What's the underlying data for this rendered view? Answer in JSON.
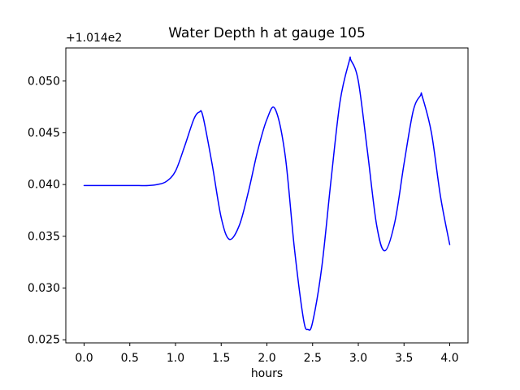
{
  "chart_data": {
    "type": "line",
    "title": "Water Depth h at gauge 105",
    "xlabel": "hours",
    "ylabel": "",
    "y_offset_text": "+1.014e2",
    "grid": false,
    "legend_position": "none",
    "line_color": "#0000ff",
    "background_color": "#ffffff",
    "xlim": [
      -0.2,
      4.2
    ],
    "ylim": [
      0.0247,
      0.0532
    ],
    "x_ticks": {
      "values": [
        0.0,
        0.5,
        1.0,
        1.5,
        2.0,
        2.5,
        3.0,
        3.5,
        4.0
      ],
      "labels": [
        "0.0",
        "0.5",
        "1.0",
        "1.5",
        "2.0",
        "2.5",
        "3.0",
        "3.5",
        "4.0"
      ]
    },
    "y_ticks": {
      "values": [
        0.025,
        0.03,
        0.035,
        0.04,
        0.045,
        0.05
      ],
      "labels": [
        "0.025",
        "0.030",
        "0.035",
        "0.040",
        "0.045",
        "0.050"
      ]
    },
    "series": [
      {
        "name": "water-depth-h",
        "points": [
          [
            0.0,
            0.0399
          ],
          [
            0.1,
            0.0399
          ],
          [
            0.2,
            0.0399
          ],
          [
            0.3,
            0.0399
          ],
          [
            0.4,
            0.0399
          ],
          [
            0.5,
            0.0399
          ],
          [
            0.6,
            0.0399
          ],
          [
            0.7,
            0.0399
          ],
          [
            0.8,
            0.04
          ],
          [
            0.9,
            0.0403
          ],
          [
            1.0,
            0.0413
          ],
          [
            1.1,
            0.0437
          ],
          [
            1.2,
            0.0463
          ],
          [
            1.26,
            0.047
          ],
          [
            1.3,
            0.0466
          ],
          [
            1.4,
            0.042
          ],
          [
            1.5,
            0.0368
          ],
          [
            1.59,
            0.0347
          ],
          [
            1.7,
            0.0361
          ],
          [
            1.8,
            0.0394
          ],
          [
            1.9,
            0.0433
          ],
          [
            2.0,
            0.0463
          ],
          [
            2.09,
            0.0473
          ],
          [
            2.2,
            0.0428
          ],
          [
            2.3,
            0.0339
          ],
          [
            2.4,
            0.027
          ],
          [
            2.45,
            0.026
          ],
          [
            2.5,
            0.0267
          ],
          [
            2.6,
            0.032
          ],
          [
            2.7,
            0.0403
          ],
          [
            2.8,
            0.048
          ],
          [
            2.9,
            0.0519
          ],
          [
            2.92,
            0.052
          ],
          [
            3.0,
            0.05
          ],
          [
            3.1,
            0.0432
          ],
          [
            3.2,
            0.0361
          ],
          [
            3.29,
            0.0336
          ],
          [
            3.4,
            0.0364
          ],
          [
            3.5,
            0.042
          ],
          [
            3.6,
            0.0471
          ],
          [
            3.68,
            0.0486
          ],
          [
            3.7,
            0.0485
          ],
          [
            3.8,
            0.045
          ],
          [
            3.9,
            0.0388
          ],
          [
            4.0,
            0.0342
          ]
        ]
      }
    ]
  }
}
